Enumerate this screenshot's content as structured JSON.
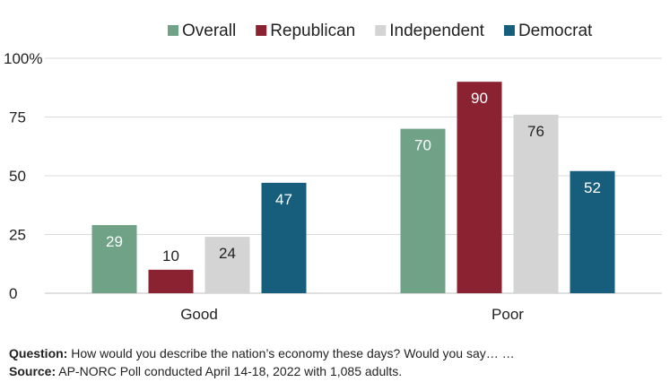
{
  "chart_data": {
    "type": "bar",
    "categories": [
      "Good",
      "Poor"
    ],
    "series": [
      {
        "name": "Overall",
        "values": [
          29,
          70
        ],
        "color": "#6fa287"
      },
      {
        "name": "Republican",
        "values": [
          10,
          90
        ],
        "color": "#8b2232"
      },
      {
        "name": "Independent",
        "values": [
          24,
          76
        ],
        "color": "#d4d4d4"
      },
      {
        "name": "Democrat",
        "values": [
          47,
          52
        ],
        "color": "#175e7d"
      }
    ],
    "label_colors": [
      "#ffffff",
      "#ffffff",
      "#222222",
      "#ffffff"
    ],
    "small_label_color": "#222222",
    "yticks": [
      "0",
      "25",
      "50",
      "75",
      "100%"
    ],
    "ylim": [
      0,
      100
    ],
    "grid": true,
    "legend": "top"
  },
  "footnote": {
    "question_label": "Question:",
    "question_text": " How would you describe the nation’s economy these days? Would you say… …",
    "source_label": "Source:",
    "source_text": " AP-NORC Poll conducted April 14-18, 2022 with 1,085 adults."
  }
}
